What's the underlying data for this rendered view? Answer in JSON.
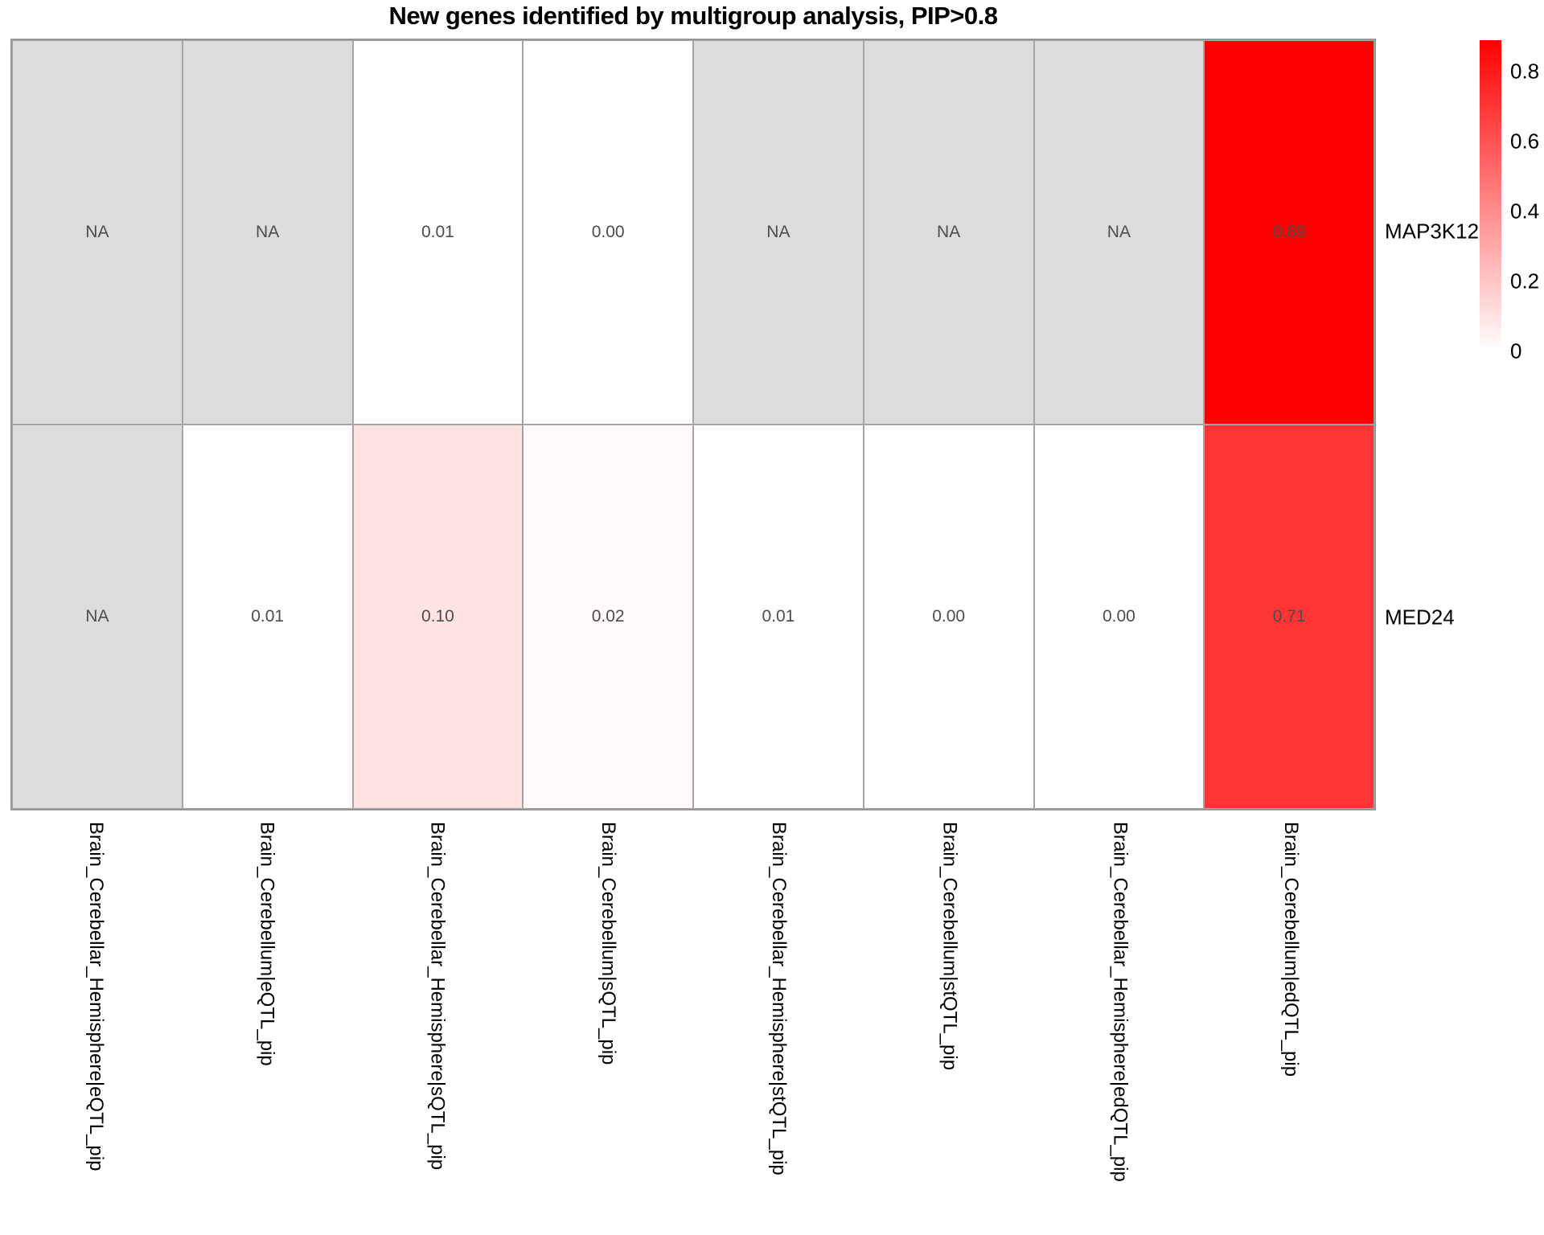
{
  "title": "New genes identified by multigroup analysis, PIP>0.8",
  "chart_data": {
    "type": "heatmap",
    "title": "New genes identified by multigroup analysis, PIP>0.8",
    "xlabel": "",
    "ylabel": "",
    "columns": [
      "Brain_Cerebellar_Hemisphere|eQTL_pip",
      "Brain_Cerebellum|eQTL_pip",
      "Brain_Cerebellar_Hemisphere|sQTL_pip",
      "Brain_Cerebellum|sQTL_pip",
      "Brain_Cerebellar_Hemisphere|stQTL_pip",
      "Brain_Cerebellum|stQTL_pip",
      "Brain_Cerebellar_Hemisphere|edQTL_pip",
      "Brain_Cerebellum|edQTL_pip"
    ],
    "rows": [
      {
        "name": "MAP3K12",
        "values": [
          "NA",
          "NA",
          "0.01",
          "0.00",
          "NA",
          "NA",
          "NA",
          "0.89"
        ]
      },
      {
        "name": "MED24",
        "values": [
          "NA",
          "0.01",
          "0.10",
          "0.02",
          "0.01",
          "0.00",
          "0.00",
          "0.71"
        ]
      }
    ],
    "value_scale": {
      "min": 0,
      "max": 0.89
    },
    "legend": {
      "position": "right",
      "tick_labels": [
        "0.8",
        "0.6",
        "0.4",
        "0.2",
        "0"
      ],
      "tick_values": [
        0.8,
        0.6,
        0.4,
        0.2,
        0
      ]
    },
    "grid": "on",
    "colors": {
      "na_fill": "#dcdcdc",
      "low": "#ffffff",
      "high": "#ff0000",
      "cell_border": "#a5a5a5",
      "outer_border": "#969696",
      "value_text": "#4d4d4d",
      "label_text": "#000000"
    }
  }
}
